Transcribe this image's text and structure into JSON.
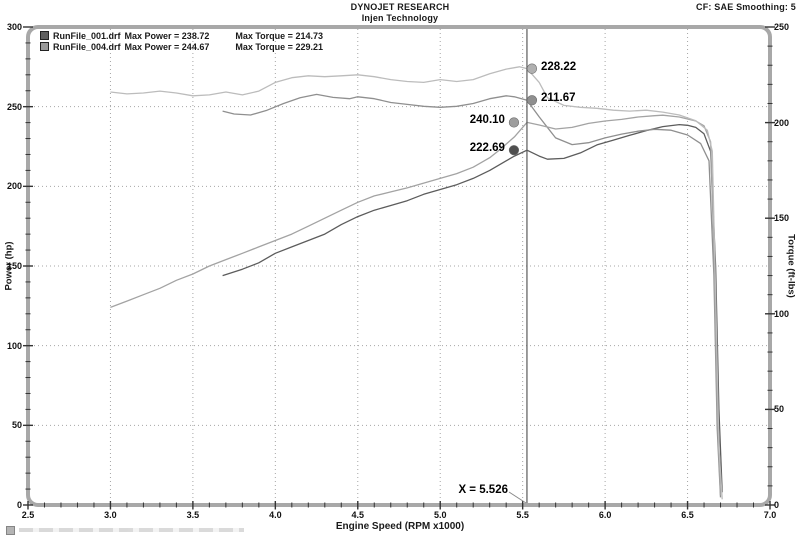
{
  "header": {
    "title": "DYNOJET RESEARCH",
    "subtitle": "Injen Technology",
    "settings": "CF: SAE  Smoothing: 5"
  },
  "legend": [
    {
      "file": "RunFile_001.drf",
      "power": "Max Power = 238.72",
      "torque": "Max Torque = 214.73",
      "swatch_color": "#5f5f5f"
    },
    {
      "file": "RunFile_004.drf",
      "power": "Max Power = 244.67",
      "torque": "Max Torque = 229.21",
      "swatch_color": "#9a9a9a"
    }
  ],
  "cursor": {
    "x": 5.526,
    "label": "X = 5.526"
  },
  "annotations": [
    {
      "label": "228.22",
      "value": 228.22,
      "axis": "right",
      "side": "right",
      "color": "#b0b0b0",
      "dx": 5
    },
    {
      "label": "211.67",
      "value": 211.67,
      "axis": "right",
      "side": "right",
      "color": "#8f8f8f",
      "dx": 5
    },
    {
      "label": "240.10",
      "value": 240.1,
      "axis": "left",
      "side": "left",
      "color": "#9e9e9e",
      "dx": -13
    },
    {
      "label": "222.69",
      "value": 222.69,
      "axis": "left",
      "side": "left",
      "color": "#4f4f4f",
      "dx": -13
    }
  ],
  "chart_data": {
    "type": "line",
    "title": "DYNOJET RESEARCH — Injen Technology",
    "xlabel": "Engine Speed (RPM x1000)",
    "ylabel_left": "Power (hp)",
    "ylabel_right": "Torque (ft-lbs)",
    "xlim": [
      2.5,
      7.0
    ],
    "ylim_left": [
      0,
      300
    ],
    "ylim_right": [
      0,
      250
    ],
    "x_tick_labels": [
      "2.5",
      "3.0",
      "3.5",
      "4.0",
      "4.5",
      "5.0",
      "5.5",
      "6.0",
      "6.5",
      "7.0"
    ],
    "y_left_tick_labels": [
      "0",
      "50",
      "100",
      "150",
      "200",
      "250",
      "300"
    ],
    "y_right_tick_labels": [
      "0",
      "50",
      "100",
      "150",
      "200",
      "250"
    ],
    "grid": true,
    "cursor_x": 5.526,
    "series": [
      {
        "name": "RunFile_001.drf Power",
        "axis": "left",
        "color": "#5c5c5c",
        "max": 238.72,
        "points": [
          [
            3.68,
            144
          ],
          [
            3.8,
            148
          ],
          [
            3.9,
            152
          ],
          [
            4.0,
            158
          ],
          [
            4.1,
            162
          ],
          [
            4.2,
            166
          ],
          [
            4.3,
            170
          ],
          [
            4.4,
            176
          ],
          [
            4.5,
            181
          ],
          [
            4.6,
            185
          ],
          [
            4.7,
            188
          ],
          [
            4.8,
            191
          ],
          [
            4.9,
            195
          ],
          [
            5.0,
            198
          ],
          [
            5.1,
            201
          ],
          [
            5.2,
            205
          ],
          [
            5.3,
            210
          ],
          [
            5.4,
            216
          ],
          [
            5.45,
            219
          ],
          [
            5.526,
            222.69
          ],
          [
            5.6,
            219
          ],
          [
            5.65,
            217
          ],
          [
            5.75,
            217.5
          ],
          [
            5.85,
            221
          ],
          [
            5.95,
            226
          ],
          [
            6.05,
            229
          ],
          [
            6.15,
            232
          ],
          [
            6.25,
            235
          ],
          [
            6.35,
            237.5
          ],
          [
            6.45,
            238.72
          ],
          [
            6.5,
            238.3
          ],
          [
            6.55,
            237
          ],
          [
            6.6,
            233
          ],
          [
            6.64,
            222
          ],
          [
            6.67,
            150
          ],
          [
            6.69,
            60
          ],
          [
            6.71,
            8
          ]
        ]
      },
      {
        "name": "RunFile_001.drf Torque",
        "axis": "right",
        "color": "#8f8f8f",
        "max": 214.73,
        "points": [
          [
            3.68,
            206
          ],
          [
            3.75,
            204.5
          ],
          [
            3.85,
            204
          ],
          [
            3.95,
            206.5
          ],
          [
            4.05,
            210
          ],
          [
            4.15,
            213
          ],
          [
            4.25,
            214.73
          ],
          [
            4.35,
            213.2
          ],
          [
            4.45,
            212.5
          ],
          [
            4.5,
            213.5
          ],
          [
            4.6,
            212.5
          ],
          [
            4.7,
            210.5
          ],
          [
            4.8,
            209.5
          ],
          [
            4.9,
            208.5
          ],
          [
            5.0,
            208
          ],
          [
            5.1,
            208.5
          ],
          [
            5.2,
            210
          ],
          [
            5.3,
            212.5
          ],
          [
            5.4,
            214
          ],
          [
            5.45,
            213.5
          ],
          [
            5.526,
            211.67
          ],
          [
            5.6,
            203
          ],
          [
            5.7,
            192
          ],
          [
            5.8,
            188.5
          ],
          [
            5.9,
            189.5
          ],
          [
            6.0,
            192
          ],
          [
            6.1,
            194
          ],
          [
            6.2,
            195.5
          ],
          [
            6.3,
            196.5
          ],
          [
            6.4,
            196
          ],
          [
            6.5,
            193.5
          ],
          [
            6.58,
            189
          ],
          [
            6.63,
            180
          ],
          [
            6.66,
            120
          ],
          [
            6.68,
            40
          ],
          [
            6.7,
            4
          ]
        ]
      },
      {
        "name": "RunFile_004.drf Power",
        "axis": "left",
        "color": "#a3a3a3",
        "max": 244.67,
        "points": [
          [
            3.0,
            124
          ],
          [
            3.1,
            128
          ],
          [
            3.2,
            132
          ],
          [
            3.3,
            136
          ],
          [
            3.4,
            141
          ],
          [
            3.5,
            145
          ],
          [
            3.6,
            150
          ],
          [
            3.7,
            154
          ],
          [
            3.8,
            158
          ],
          [
            3.9,
            162
          ],
          [
            4.0,
            166
          ],
          [
            4.1,
            170
          ],
          [
            4.2,
            175
          ],
          [
            4.3,
            180
          ],
          [
            4.4,
            185
          ],
          [
            4.5,
            190
          ],
          [
            4.6,
            194
          ],
          [
            4.7,
            196.5
          ],
          [
            4.8,
            199
          ],
          [
            4.9,
            202
          ],
          [
            5.0,
            205
          ],
          [
            5.1,
            208
          ],
          [
            5.2,
            212
          ],
          [
            5.3,
            218
          ],
          [
            5.35,
            222
          ],
          [
            5.45,
            231
          ],
          [
            5.526,
            240.1
          ],
          [
            5.6,
            238.5
          ],
          [
            5.7,
            236
          ],
          [
            5.8,
            237
          ],
          [
            5.9,
            239.5
          ],
          [
            6.0,
            241
          ],
          [
            6.1,
            242
          ],
          [
            6.2,
            243.5
          ],
          [
            6.3,
            244.3
          ],
          [
            6.35,
            244.67
          ],
          [
            6.45,
            243.5
          ],
          [
            6.55,
            241
          ],
          [
            6.6,
            238
          ],
          [
            6.64,
            228
          ],
          [
            6.66,
            160
          ],
          [
            6.68,
            60
          ],
          [
            6.7,
            6
          ]
        ]
      },
      {
        "name": "RunFile_004.drf Torque",
        "axis": "right",
        "color": "#bcbcbc",
        "max": 229.21,
        "points": [
          [
            3.0,
            216
          ],
          [
            3.1,
            215
          ],
          [
            3.2,
            215.5
          ],
          [
            3.3,
            216.5
          ],
          [
            3.4,
            215.5
          ],
          [
            3.5,
            214
          ],
          [
            3.6,
            214.5
          ],
          [
            3.7,
            216
          ],
          [
            3.8,
            214.5
          ],
          [
            3.9,
            216.5
          ],
          [
            4.0,
            221
          ],
          [
            4.1,
            223.5
          ],
          [
            4.2,
            224.5
          ],
          [
            4.3,
            224
          ],
          [
            4.4,
            224.5
          ],
          [
            4.5,
            225
          ],
          [
            4.6,
            224
          ],
          [
            4.7,
            222.5
          ],
          [
            4.8,
            221.5
          ],
          [
            4.9,
            221
          ],
          [
            5.0,
            222.5
          ],
          [
            5.1,
            221.5
          ],
          [
            5.2,
            222.5
          ],
          [
            5.3,
            225.5
          ],
          [
            5.4,
            228
          ],
          [
            5.48,
            229.21
          ],
          [
            5.526,
            228.22
          ],
          [
            5.6,
            221
          ],
          [
            5.65,
            213
          ],
          [
            5.75,
            209
          ],
          [
            5.85,
            208
          ],
          [
            5.95,
            207.5
          ],
          [
            6.05,
            206.5
          ],
          [
            6.15,
            206
          ],
          [
            6.25,
            206.5
          ],
          [
            6.35,
            205.5
          ],
          [
            6.45,
            204
          ],
          [
            6.55,
            201
          ],
          [
            6.62,
            196
          ],
          [
            6.65,
            185
          ],
          [
            6.67,
            110
          ],
          [
            6.69,
            30
          ],
          [
            6.71,
            3
          ]
        ]
      }
    ],
    "colors": {
      "border": "#a8a8a8",
      "grid": "#a6a6a6",
      "tick": "#333333",
      "cursor_line": "#5a5a5a"
    }
  }
}
